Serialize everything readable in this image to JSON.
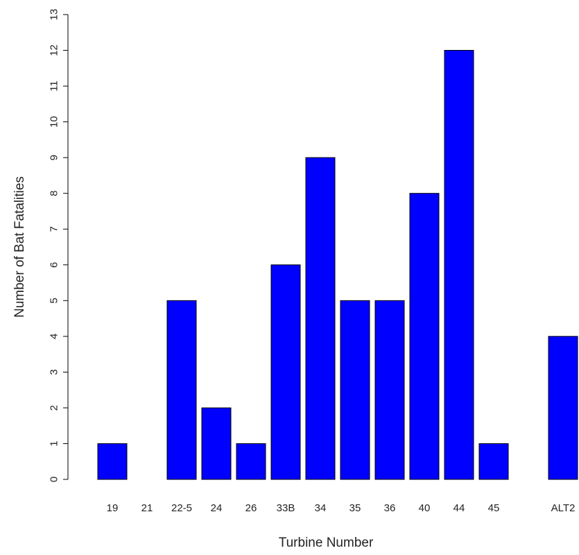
{
  "chart_data": {
    "type": "bar",
    "title": "",
    "xlabel": "Turbine Number",
    "ylabel": "Number of Bat Fatalities",
    "categories": [
      "19",
      "21",
      "22-5",
      "24",
      "26",
      "33B",
      "34",
      "35",
      "36",
      "40",
      "44",
      "45",
      "",
      "ALT2"
    ],
    "values": [
      1,
      0,
      5,
      2,
      1,
      6,
      9,
      5,
      5,
      8,
      12,
      1,
      0,
      4
    ],
    "ylim": [
      0,
      13
    ],
    "yticks": [
      0,
      1,
      2,
      3,
      4,
      5,
      6,
      7,
      8,
      9,
      10,
      11,
      12,
      13
    ],
    "bar_color": "#0000FF",
    "bar_edge_color": "#000000",
    "grid": false,
    "legend": "none"
  }
}
